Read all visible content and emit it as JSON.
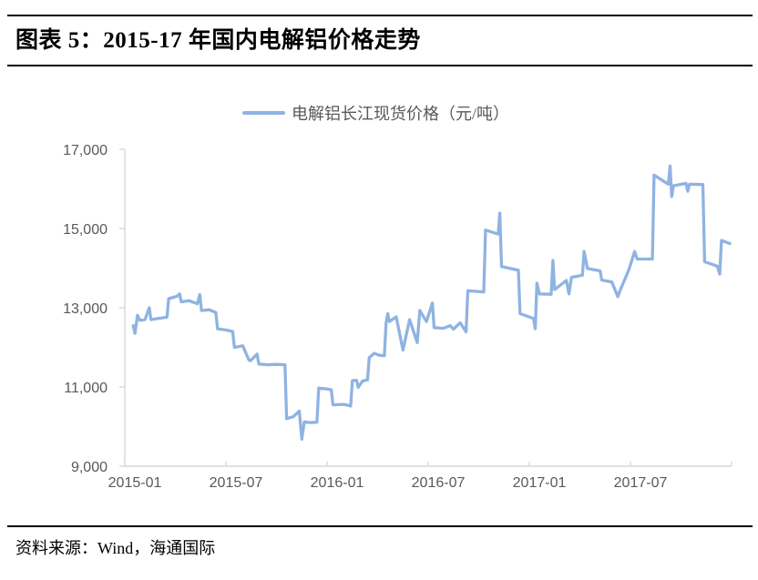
{
  "header": {
    "title": "图表 5：2015-17 年国内电解铝价格走势"
  },
  "footer": {
    "source": "资料来源：Wind，海通国际"
  },
  "colors": {
    "series_blue": "#8FB3E2",
    "axis_line": "#D9D9D9",
    "tick_text": "#595959"
  },
  "chart_data": {
    "type": "line",
    "title": "2015-17 年国内电解铝价格走势",
    "legend": "电解铝长江现货价格（元/吨）",
    "legend_position": "top",
    "grid": false,
    "xlabel": "",
    "ylabel": "",
    "x_unit": "months since 2015-01",
    "xlim": [
      0,
      36
    ],
    "ylim": [
      9000,
      17000
    ],
    "y_ticks": [
      9000,
      11000,
      13000,
      15000,
      17000
    ],
    "y_tick_labels": [
      "9,000",
      "11,000",
      "13,000",
      "15,000",
      "17,000"
    ],
    "x_tick_months": [
      0,
      6,
      12,
      18,
      24,
      30,
      36
    ],
    "x_tick_labels": [
      "2015-01",
      "2015-07",
      "2016-01",
      "2016-07",
      "2017-01",
      "2017-07",
      ""
    ],
    "series": [
      {
        "name": "电解铝长江现货价格（元/吨）",
        "color": "#8FB3E2",
        "points": [
          [
            0.5,
            12550
          ],
          [
            0.6,
            12350
          ],
          [
            0.75,
            12810
          ],
          [
            0.9,
            12680
          ],
          [
            1.2,
            12700
          ],
          [
            1.45,
            13000
          ],
          [
            1.55,
            12700
          ],
          [
            2.0,
            12730
          ],
          [
            2.5,
            12760
          ],
          [
            2.6,
            13230
          ],
          [
            3.1,
            13290
          ],
          [
            3.25,
            13350
          ],
          [
            3.35,
            13150
          ],
          [
            3.8,
            13180
          ],
          [
            4.3,
            13100
          ],
          [
            4.45,
            13330
          ],
          [
            4.55,
            12930
          ],
          [
            5.0,
            12950
          ],
          [
            5.4,
            12880
          ],
          [
            5.5,
            12470
          ],
          [
            6.0,
            12440
          ],
          [
            6.4,
            12400
          ],
          [
            6.5,
            12000
          ],
          [
            7.0,
            12040
          ],
          [
            7.35,
            11690
          ],
          [
            7.45,
            11660
          ],
          [
            7.85,
            11830
          ],
          [
            7.95,
            11580
          ],
          [
            8.5,
            11560
          ],
          [
            9.0,
            11570
          ],
          [
            9.5,
            11560
          ],
          [
            9.6,
            10200
          ],
          [
            10.0,
            10250
          ],
          [
            10.35,
            10390
          ],
          [
            10.5,
            9680
          ],
          [
            10.65,
            10120
          ],
          [
            11.0,
            10100
          ],
          [
            11.4,
            10110
          ],
          [
            11.5,
            10970
          ],
          [
            12.0,
            10950
          ],
          [
            12.25,
            10930
          ],
          [
            12.35,
            10550
          ],
          [
            13.0,
            10560
          ],
          [
            13.4,
            10520
          ],
          [
            13.5,
            11160
          ],
          [
            13.75,
            11170
          ],
          [
            13.85,
            10990
          ],
          [
            14.1,
            11150
          ],
          [
            14.4,
            11180
          ],
          [
            14.5,
            11740
          ],
          [
            14.8,
            11850
          ],
          [
            15.1,
            11800
          ],
          [
            15.4,
            11790
          ],
          [
            15.5,
            12620
          ],
          [
            15.6,
            12850
          ],
          [
            15.7,
            12650
          ],
          [
            16.1,
            12770
          ],
          [
            16.5,
            11930
          ],
          [
            16.9,
            12700
          ],
          [
            17.35,
            12120
          ],
          [
            17.5,
            12930
          ],
          [
            17.9,
            12650
          ],
          [
            18.25,
            13120
          ],
          [
            18.35,
            12500
          ],
          [
            18.9,
            12480
          ],
          [
            19.3,
            12550
          ],
          [
            19.5,
            12460
          ],
          [
            19.9,
            12620
          ],
          [
            20.25,
            12390
          ],
          [
            20.35,
            13430
          ],
          [
            21.3,
            13400
          ],
          [
            21.4,
            14960
          ],
          [
            22.15,
            14860
          ],
          [
            22.25,
            15390
          ],
          [
            22.35,
            14040
          ],
          [
            23.35,
            13950
          ],
          [
            23.45,
            12850
          ],
          [
            24.25,
            12730
          ],
          [
            24.35,
            12470
          ],
          [
            24.45,
            13620
          ],
          [
            24.6,
            13350
          ],
          [
            25.3,
            13340
          ],
          [
            25.4,
            14190
          ],
          [
            25.5,
            13460
          ],
          [
            26.2,
            13690
          ],
          [
            26.35,
            13350
          ],
          [
            26.5,
            13770
          ],
          [
            27.15,
            13820
          ],
          [
            27.25,
            14420
          ],
          [
            27.45,
            13990
          ],
          [
            28.2,
            13930
          ],
          [
            28.3,
            13700
          ],
          [
            28.9,
            13650
          ],
          [
            29.25,
            13280
          ],
          [
            29.4,
            13450
          ],
          [
            29.9,
            13950
          ],
          [
            30.25,
            14420
          ],
          [
            30.4,
            14230
          ],
          [
            31.3,
            14230
          ],
          [
            31.4,
            16350
          ],
          [
            32.25,
            16120
          ],
          [
            32.35,
            16580
          ],
          [
            32.45,
            15810
          ],
          [
            32.55,
            16080
          ],
          [
            33.3,
            16140
          ],
          [
            33.4,
            15940
          ],
          [
            33.5,
            16120
          ],
          [
            34.3,
            16110
          ],
          [
            34.4,
            14160
          ],
          [
            35.15,
            14050
          ],
          [
            35.3,
            13850
          ],
          [
            35.4,
            14700
          ],
          [
            35.9,
            14620
          ]
        ]
      }
    ]
  }
}
